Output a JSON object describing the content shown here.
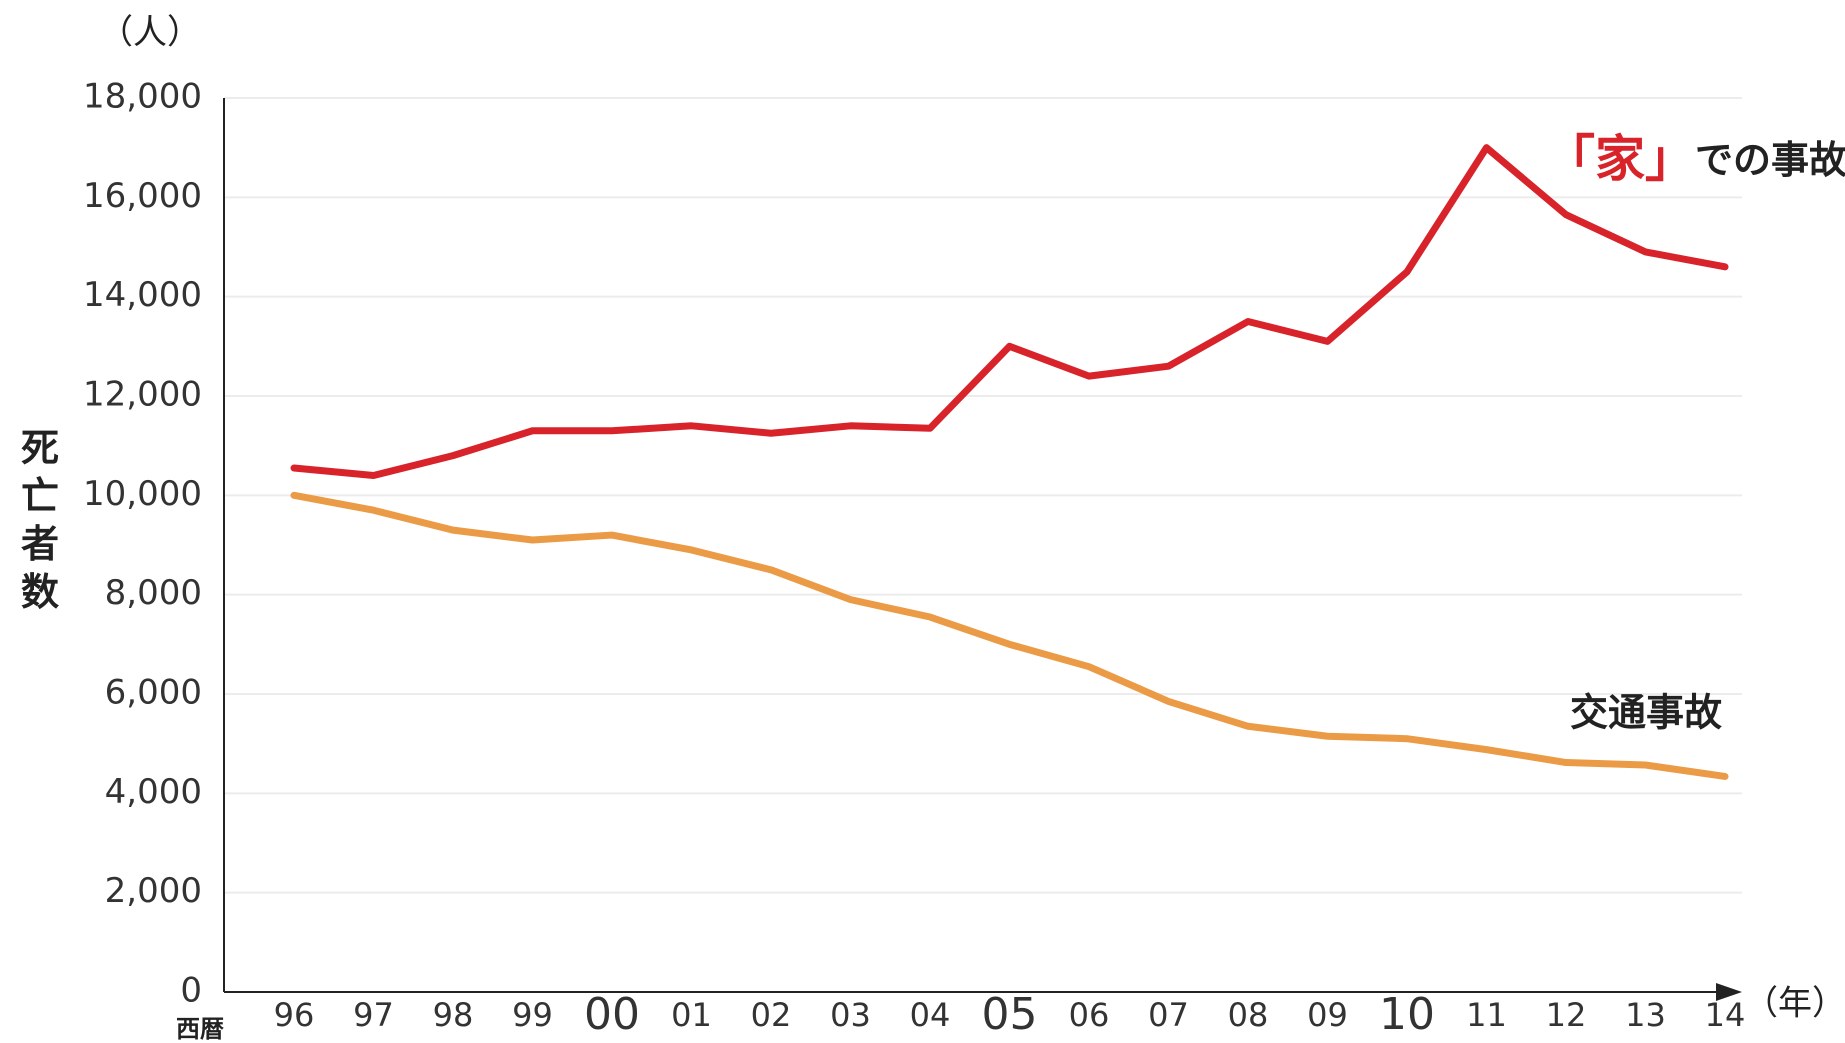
{
  "chart_data": {
    "type": "line",
    "unit_label": "（人）",
    "y_axis_label": "死亡者数",
    "x_axis_prefix": "西暦",
    "x_axis_unit": "（年）",
    "categories": [
      "96",
      "97",
      "98",
      "99",
      "00",
      "01",
      "02",
      "03",
      "04",
      "05",
      "06",
      "07",
      "08",
      "09",
      "10",
      "11",
      "12",
      "13",
      "14"
    ],
    "series": [
      {
        "name": "「家」での事故",
        "color": "#d8232a",
        "values": [
          10550,
          10400,
          10800,
          11300,
          11300,
          11400,
          11250,
          11400,
          11350,
          13000,
          12400,
          12600,
          13500,
          13100,
          14500,
          17000,
          15650,
          14900,
          14600
        ]
      },
      {
        "name": "交通事故",
        "color": "#eb9a45",
        "values": [
          10000,
          9700,
          9300,
          9100,
          9200,
          8900,
          8500,
          7900,
          7550,
          7000,
          6550,
          5850,
          5350,
          5150,
          5100,
          4880,
          4620,
          4570,
          4340
        ]
      }
    ],
    "ylim": [
      0,
      18000
    ],
    "yticks": [
      0,
      {
        "value": 2000,
        "label": "2,000"
      },
      {
        "value": 4000,
        "label": "4,000"
      },
      {
        "value": 6000,
        "label": "6,000"
      },
      {
        "value": 8000,
        "label": "8,000"
      },
      {
        "value": 10000,
        "label": "10,000"
      },
      {
        "value": 12000,
        "label": "12,000"
      },
      {
        "value": 14000,
        "label": "14,000"
      },
      {
        "value": 16000,
        "label": "16,000"
      },
      {
        "value": 18000,
        "label": "18,000"
      }
    ],
    "grid": true
  }
}
